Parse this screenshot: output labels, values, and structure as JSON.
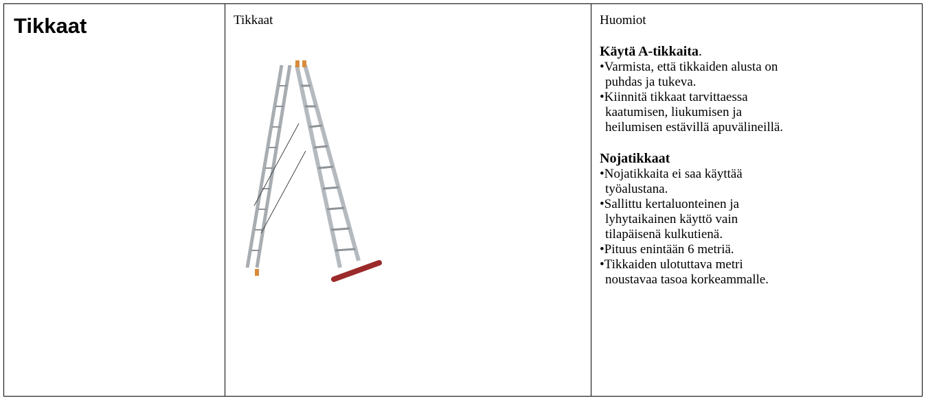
{
  "title": "Tikkaat",
  "image_column": {
    "header": "Tikkaat"
  },
  "notes_column": {
    "header": "Huomiot",
    "sections": [
      {
        "heading": "Käytä A-tikkaita",
        "heading_suffix": ".",
        "items": [
          [
            "•Varmista, että tikkaiden alusta on",
            "puhdas ja tukeva."
          ],
          [
            "•Kiinnitä tikkaat tarvittaessa",
            "kaatumisen, liukumisen ja",
            "heilumisen estävillä apuvälineillä."
          ]
        ]
      },
      {
        "heading": "Nojatikkaat",
        "items": [
          [
            "•Nojatikkaita ei saa käyttää",
            "työalustana."
          ],
          [
            "•Sallittu kertaluonteinen ja",
            "lyhytaikainen käyttö vain",
            "tilapäisenä kulkutienä."
          ],
          [
            "•Pituus enintään 6 metriä."
          ],
          [
            "•Tikkaiden ulotuttava metri",
            "noustavaa tasoa korkeammalle."
          ]
        ]
      }
    ]
  }
}
